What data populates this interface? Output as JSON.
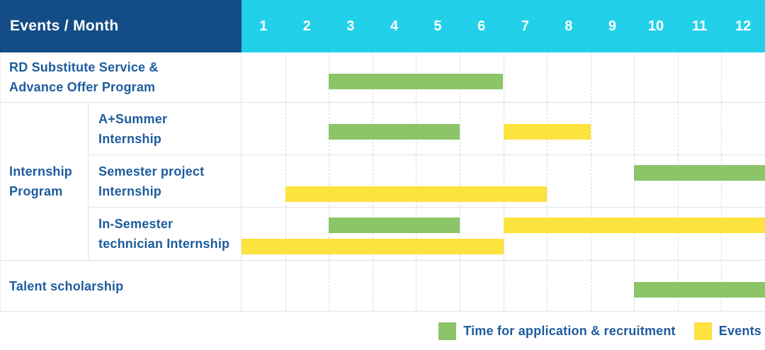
{
  "header": {
    "title": "Events / Month",
    "months": [
      "1",
      "2",
      "3",
      "4",
      "5",
      "6",
      "7",
      "8",
      "9",
      "10",
      "11",
      "12"
    ]
  },
  "group": {
    "label_lines": [
      "Internship",
      "Program"
    ]
  },
  "rows": [
    {
      "label_lines": [
        "RD Substitute Service &",
        "Advance Offer Program"
      ],
      "lanes": [
        [
          {
            "kind": "application",
            "start": 3,
            "end": 6
          }
        ]
      ]
    },
    {
      "label_lines": [
        "A+Summer",
        "Internship"
      ],
      "lanes": [
        [
          {
            "kind": "application",
            "start": 3,
            "end": 5
          },
          {
            "kind": "events",
            "start": 7,
            "end": 8
          }
        ]
      ]
    },
    {
      "label_lines": [
        "Semester project",
        "Internship"
      ],
      "lanes": [
        [
          {
            "kind": "application",
            "start": 10,
            "end": 12
          }
        ],
        [
          {
            "kind": "events",
            "start": 2,
            "end": 7
          }
        ]
      ]
    },
    {
      "label_lines": [
        "In-Semester",
        "technician Internship"
      ],
      "lanes": [
        [
          {
            "kind": "application",
            "start": 3,
            "end": 5
          },
          {
            "kind": "events",
            "start": 7,
            "end": 12
          }
        ],
        [
          {
            "kind": "events",
            "start": 1,
            "end": 6
          }
        ]
      ]
    },
    {
      "label_lines": [
        "Talent scholarship"
      ],
      "lanes": [
        [
          {
            "kind": "application",
            "start": 10,
            "end": 12
          }
        ]
      ]
    }
  ],
  "legend": [
    {
      "kind": "application",
      "label": "Time for application & recruitment"
    },
    {
      "kind": "events",
      "label": "Events"
    }
  ],
  "colors": {
    "header_bg": "#134c86",
    "months_bg": "#22d1e9",
    "text_blue": "#1d5c9e",
    "application": "#8cc468",
    "events": "#fee23e",
    "gridline": "#e3e3e3"
  },
  "chart_data": {
    "type": "table",
    "title": "Events / Month",
    "x_unit": "month",
    "x_range": [
      1,
      12
    ],
    "legend": [
      "Time for application & recruitment",
      "Events"
    ],
    "rows": [
      {
        "event": "RD Substitute Service & Advance Offer Program",
        "group": null,
        "application_recruitment_months": [
          [
            3,
            6
          ]
        ],
        "events_months": []
      },
      {
        "event": "A+Summer Internship",
        "group": "Internship Program",
        "application_recruitment_months": [
          [
            3,
            5
          ]
        ],
        "events_months": [
          [
            7,
            8
          ]
        ]
      },
      {
        "event": "Semester project Internship",
        "group": "Internship Program",
        "application_recruitment_months": [
          [
            10,
            12
          ]
        ],
        "events_months": [
          [
            2,
            7
          ]
        ]
      },
      {
        "event": "In-Semester technician Internship",
        "group": "Internship Program",
        "application_recruitment_months": [
          [
            3,
            5
          ]
        ],
        "events_months": [
          [
            1,
            6
          ],
          [
            7,
            12
          ]
        ]
      },
      {
        "event": "Talent scholarship",
        "group": null,
        "application_recruitment_months": [
          [
            10,
            12
          ]
        ],
        "events_months": []
      }
    ]
  }
}
